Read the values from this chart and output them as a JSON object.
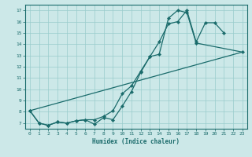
{
  "xlabel": "Humidex (Indice chaleur)",
  "bg_color": "#cce8e8",
  "line_color": "#1a6b6b",
  "xlim": [
    -0.5,
    23.5
  ],
  "ylim": [
    6.5,
    17.5
  ],
  "xticks": [
    0,
    1,
    2,
    3,
    4,
    5,
    6,
    7,
    8,
    9,
    10,
    11,
    12,
    13,
    14,
    15,
    16,
    17,
    18,
    19,
    20,
    21,
    22,
    23
  ],
  "yticks": [
    7,
    8,
    9,
    10,
    11,
    12,
    13,
    14,
    15,
    16,
    17
  ],
  "line1_x": [
    0,
    1,
    2,
    3,
    4,
    5,
    6,
    7,
    8,
    9,
    10,
    11,
    12,
    13,
    14,
    15,
    16,
    17,
    18,
    19,
    20,
    21
  ],
  "line1_y": [
    8.1,
    7.0,
    6.8,
    7.1,
    7.0,
    7.2,
    7.3,
    7.3,
    7.6,
    8.1,
    9.6,
    10.3,
    11.6,
    12.9,
    14.2,
    15.8,
    16.0,
    17.0,
    14.2,
    15.9,
    15.9,
    15.0
  ],
  "line2_x": [
    0,
    1,
    2,
    3,
    4,
    5,
    6,
    7,
    8,
    9,
    10,
    11,
    12,
    13,
    14,
    15,
    16,
    17,
    18,
    23
  ],
  "line2_y": [
    8.1,
    7.0,
    6.8,
    7.1,
    7.0,
    7.2,
    7.3,
    6.9,
    7.5,
    7.3,
    8.5,
    9.8,
    11.5,
    12.9,
    13.1,
    16.3,
    17.0,
    16.8,
    14.1,
    13.3
  ],
  "line3_x": [
    0,
    23
  ],
  "line3_y": [
    8.1,
    13.3
  ],
  "grid_color": "#99cccc",
  "markersize": 2.2,
  "grid_linewidth": 0.5,
  "line_linewidth": 0.9
}
